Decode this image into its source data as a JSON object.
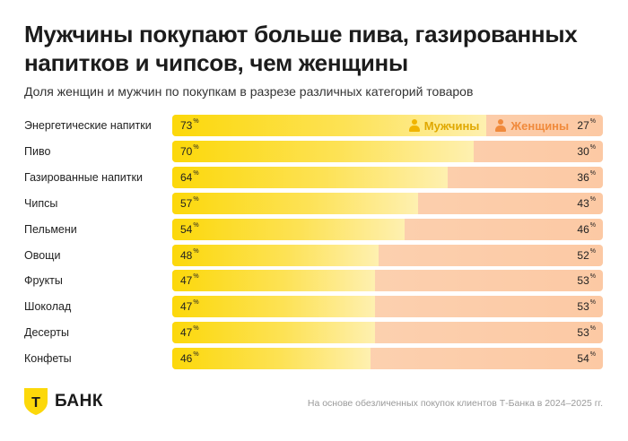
{
  "title": "Мужчины покупают больше пива, газированных напитков и чипсов, чем женщины",
  "subtitle": "Доля женщин и мужчин по покупкам в разрезе различных категорий товаров",
  "legend": {
    "men": "Мужчины",
    "women": "Женщины"
  },
  "percent_sign": "%",
  "footer": {
    "logo_text": "БАНК",
    "logo_letter": "Т",
    "note": "На основе обезличенных покупок клиентов Т-Банка в 2024–2025 гг."
  },
  "colors": {
    "men": "#fcd80a",
    "women": "#fcc9a4",
    "men_legend": "#e0a800",
    "women_legend": "#f08a3c"
  },
  "chart_data": {
    "type": "bar",
    "orientation": "horizontal-stacked-100",
    "title": "Мужчины покупают больше пива, газированных напитков и чипсов, чем женщины",
    "subtitle": "Доля женщин и мужчин по покупкам в разрезе различных категорий товаров",
    "categories": [
      "Энергетические напитки",
      "Пиво",
      "Газированные напитки",
      "Чипсы",
      "Пельмени",
      "Овощи",
      "Фрукты",
      "Шоколад",
      "Десерты",
      "Конфеты"
    ],
    "series": [
      {
        "name": "Мужчины",
        "values": [
          73,
          70,
          64,
          57,
          54,
          48,
          47,
          47,
          47,
          46
        ]
      },
      {
        "name": "Женщины",
        "values": [
          27,
          30,
          36,
          43,
          46,
          52,
          53,
          53,
          53,
          54
        ]
      }
    ],
    "xlim": [
      0,
      100
    ],
    "unit": "%",
    "legend_position": "inside-first-bar"
  }
}
